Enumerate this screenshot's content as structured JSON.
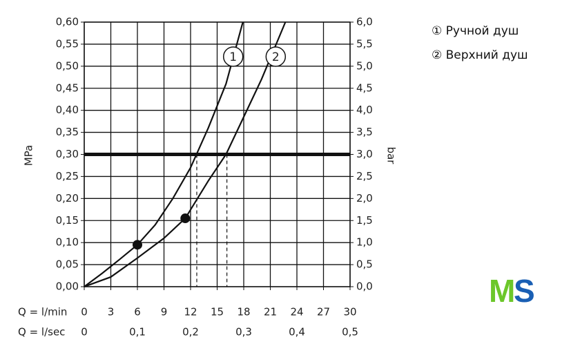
{
  "chart_data": {
    "type": "line",
    "y_label": "MPa",
    "y2_label": "bar",
    "x_label": "Q = l/min",
    "x2_label": "Q = l/sec",
    "xlim": [
      0,
      30
    ],
    "xticks": [
      0,
      3,
      6,
      9,
      12,
      15,
      18,
      21,
      24,
      27,
      30
    ],
    "x2lim": [
      0,
      0.5
    ],
    "x2ticks": [
      {
        "value": 0,
        "label": "0"
      },
      {
        "value": 0.1,
        "label": "0,1"
      },
      {
        "value": 0.2,
        "label": "0,2"
      },
      {
        "value": 0.3,
        "label": "0,3"
      },
      {
        "value": 0.4,
        "label": "0,4"
      },
      {
        "value": 0.5,
        "label": "0,5"
      }
    ],
    "ylim": [
      0,
      0.6
    ],
    "yticks": [
      {
        "value": 0,
        "label": "0,00"
      },
      {
        "value": 0.05,
        "label": "0,05"
      },
      {
        "value": 0.1,
        "label": "0,10"
      },
      {
        "value": 0.15,
        "label": "0,15"
      },
      {
        "value": 0.2,
        "label": "0,20"
      },
      {
        "value": 0.25,
        "label": "0,25"
      },
      {
        "value": 0.3,
        "label": "0,30"
      },
      {
        "value": 0.35,
        "label": "0,35"
      },
      {
        "value": 0.4,
        "label": "0,40"
      },
      {
        "value": 0.45,
        "label": "0,45"
      },
      {
        "value": 0.5,
        "label": "0,50"
      },
      {
        "value": 0.55,
        "label": "0,55"
      },
      {
        "value": 0.6,
        "label": "0,60"
      }
    ],
    "y2lim": [
      0,
      6
    ],
    "y2ticks": [
      {
        "value": 0,
        "label": "0,0"
      },
      {
        "value": 0.5,
        "label": "0,5"
      },
      {
        "value": 1,
        "label": "1,0"
      },
      {
        "value": 1.5,
        "label": "1,5"
      },
      {
        "value": 2,
        "label": "2,0"
      },
      {
        "value": 2.5,
        "label": "2,5"
      },
      {
        "value": 3,
        "label": "3,0"
      },
      {
        "value": 3.5,
        "label": "3,5"
      },
      {
        "value": 4,
        "label": "4,0"
      },
      {
        "value": 4.5,
        "label": "4,5"
      },
      {
        "value": 5,
        "label": "5,0"
      },
      {
        "value": 5.5,
        "label": "5,5"
      },
      {
        "value": 6,
        "label": "6,0"
      }
    ],
    "grid": true,
    "reference_y": 0.3,
    "reference_x": [
      12.7,
      16.1
    ],
    "series": [
      {
        "name": "① Ручной душ",
        "label": "1",
        "color": "#111",
        "x": [
          0,
          2,
          4,
          6,
          8,
          10,
          12,
          14,
          16,
          17.9
        ],
        "values": [
          0,
          0.03,
          0.062,
          0.095,
          0.14,
          0.2,
          0.27,
          0.36,
          0.46,
          0.6
        ],
        "marker_index": 3
      },
      {
        "name": "② Верхний душ",
        "label": "2",
        "color": "#111",
        "x": [
          0,
          3,
          6,
          9,
          11.4,
          14,
          16,
          18,
          20,
          22.7
        ],
        "values": [
          0,
          0.022,
          0.065,
          0.11,
          0.155,
          0.24,
          0.3,
          0.385,
          0.47,
          0.6
        ],
        "marker_index": 4
      }
    ],
    "logo": {
      "left": "M",
      "right": "S"
    }
  }
}
